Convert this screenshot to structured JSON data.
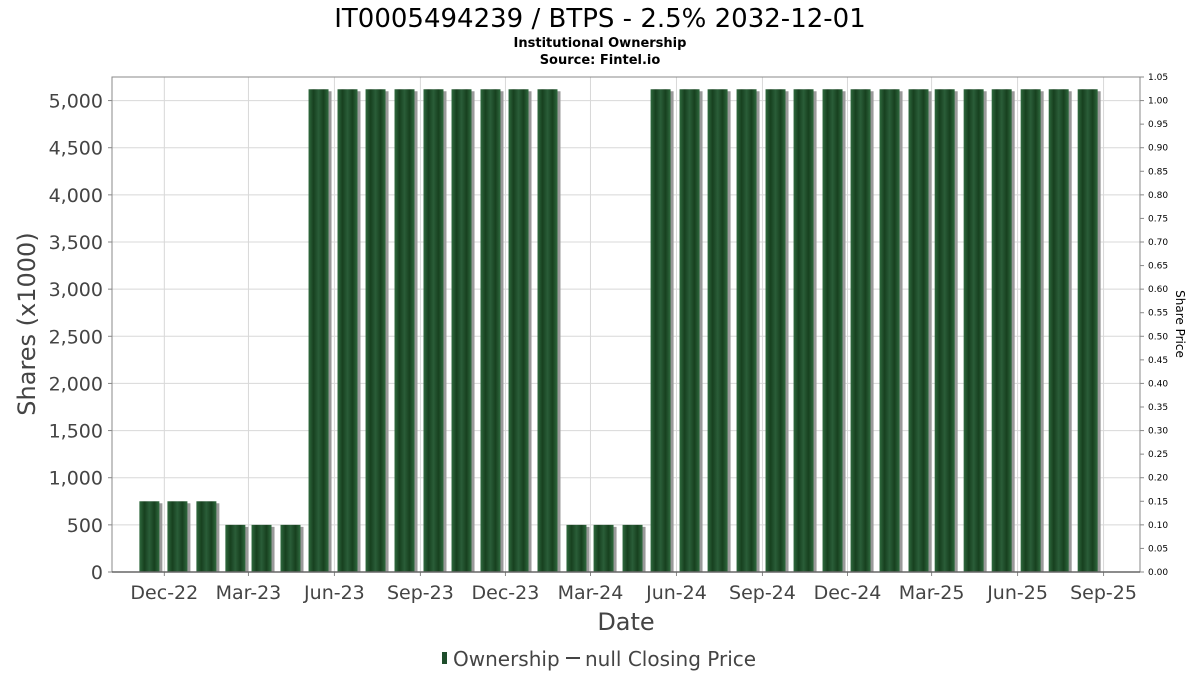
{
  "chart_data": {
    "type": "bar",
    "title": "IT0005494239 / BTPS - 2.5% 2032-12-01",
    "subtitle_lines": [
      "Institutional Ownership",
      "Source: Fintel.io"
    ],
    "xlabel": "Date",
    "ylabel": "Shares (x1000)",
    "y2label": "Share Price",
    "ylim": [
      0,
      5250
    ],
    "y2lim": [
      0,
      1.05
    ],
    "yticks": [
      "0",
      "500",
      "1,000",
      "1,500",
      "2,000",
      "2,500",
      "3,000",
      "3,500",
      "4,000",
      "4,500",
      "5,000"
    ],
    "ytick_values": [
      0,
      500,
      1000,
      1500,
      2000,
      2500,
      3000,
      3500,
      4000,
      4500,
      5000
    ],
    "y2ticks": [
      "0.00",
      "0.05",
      "0.10",
      "0.15",
      "0.20",
      "0.25",
      "0.30",
      "0.35",
      "0.40",
      "0.45",
      "0.50",
      "0.55",
      "0.60",
      "0.65",
      "0.70",
      "0.75",
      "0.80",
      "0.85",
      "0.90",
      "0.95",
      "1.00",
      "1.05"
    ],
    "xticks": [
      "Dec-22",
      "Mar-23",
      "Jun-23",
      "Sep-23",
      "Dec-23",
      "Mar-24",
      "Jun-24",
      "Sep-24",
      "Dec-24",
      "Mar-25",
      "Jun-25",
      "Sep-25"
    ],
    "grid": true,
    "legend_placement": "bottom",
    "bar_color": "#1e4d2b",
    "series": [
      {
        "name": "Ownership",
        "x": [
          "2022-11-15",
          "2022-12-15",
          "2023-01-15",
          "2023-02-15",
          "2023-03-15",
          "2023-04-15",
          "2023-05-15",
          "2023-06-15",
          "2023-07-15",
          "2023-08-15",
          "2023-09-15",
          "2023-10-15",
          "2023-11-15",
          "2023-12-15",
          "2024-01-15",
          "2024-02-15",
          "2024-03-15",
          "2024-04-15",
          "2024-05-15",
          "2024-06-15",
          "2024-07-15",
          "2024-08-15",
          "2024-09-15",
          "2024-10-15",
          "2024-11-15",
          "2024-12-15",
          "2025-01-15",
          "2025-02-15",
          "2025-03-15",
          "2025-04-15",
          "2025-05-15",
          "2025-06-15",
          "2025-07-15",
          "2025-08-15"
        ],
        "values": [
          750,
          750,
          750,
          500,
          500,
          500,
          5120,
          5120,
          5120,
          5120,
          5120,
          5120,
          5120,
          5120,
          5120,
          500,
          500,
          500,
          5120,
          5120,
          5120,
          5120,
          5120,
          5120,
          5120,
          5120,
          5120,
          5120,
          5120,
          5120,
          5120,
          5120,
          5120,
          5120
        ]
      }
    ],
    "legend": [
      {
        "label": "Ownership",
        "marker": "bar"
      },
      {
        "label": "null Closing Price",
        "marker": "line"
      }
    ]
  }
}
